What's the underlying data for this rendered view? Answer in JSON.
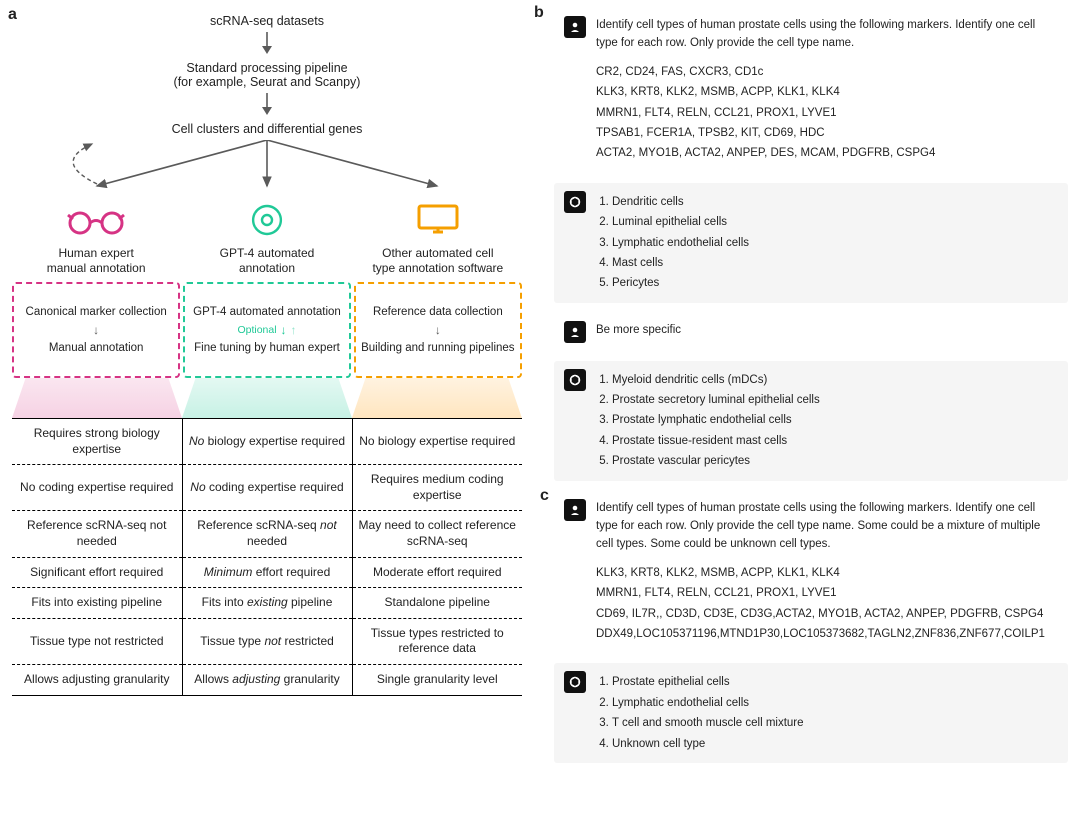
{
  "styling": {
    "colors": {
      "pink": "#d63384",
      "teal": "#20c997",
      "orange": "#f59f00",
      "arrow": "#5a5a5a",
      "text": "#222222",
      "chat_bg_bot": "#f5f5f5",
      "chat_bg_user": "#ffffff",
      "icon_bg": "#111111"
    },
    "fontsizes": {
      "label": 16,
      "body": 12,
      "chat": 11.5
    }
  },
  "a": {
    "flow": {
      "top": "scRNA-seq datasets",
      "mid": "Standard processing pipeline\n(for example, Seurat and Scanpy)",
      "bottom": "Cell clusters and differential genes"
    },
    "branches": [
      {
        "title": "Human expert\nmanual annotation",
        "color": "#d63384",
        "box": {
          "line1": "Canonical marker collection",
          "line2": "Manual annotation"
        }
      },
      {
        "title": "GPT-4 automated\nannotation",
        "color": "#20c997",
        "box": {
          "line1": "GPT-4 automated annotation",
          "optional": "Optional",
          "line2": "Fine tuning by human expert"
        }
      },
      {
        "title": "Other automated cell\ntype annotation software",
        "color": "#f59f00",
        "box": {
          "line1": "Reference data collection",
          "line2": "Building and running pipelines"
        }
      }
    ],
    "compare_rows": [
      [
        "Requires strong biology expertise",
        "<em>No</em> biology expertise required",
        "No biology expertise required"
      ],
      [
        "No coding expertise required",
        "<em>No</em> coding expertise required",
        "Requires medium coding expertise"
      ],
      [
        "Reference scRNA-seq not needed",
        "Reference scRNA-seq <em>not</em> needed",
        "May need to collect reference scRNA-seq"
      ],
      [
        "Significant effort required",
        "<em>Minimum</em> effort required",
        "Moderate effort required"
      ],
      [
        "Fits into existing pipeline",
        "Fits into <em>existing</em> pipeline",
        "Standalone pipeline"
      ],
      [
        "Tissue type not restricted",
        "Tissue type <em>not</em> restricted",
        "Tissue types restricted to reference data"
      ],
      [
        "Allows adjusting granularity",
        "Allows <em>adjusting</em> granularity",
        "Single granularity level"
      ]
    ]
  },
  "b": {
    "prompt1": "Identify cell types of human prostate cells using the following markers. Identify one cell type for each row. Only provide the cell type name.",
    "markers1": [
      "CR2, CD24, FAS, CXCR3, CD1c",
      "KLK3, KRT8, KLK2, MSMB, ACPP, KLK1, KLK4",
      "MMRN1, FLT4, RELN, CCL21, PROX1, LYVE1",
      "TPSAB1, FCER1A, TPSB2, KIT, CD69, HDC",
      "ACTA2, MYO1B, ACTA2, ANPEP, DES, MCAM, PDGFRB, CSPG4"
    ],
    "answer1": [
      "Dendritic cells",
      "Luminal epithelial cells",
      "Lymphatic endothelial cells",
      "Mast cells",
      "Pericytes"
    ],
    "prompt2": "Be more specific",
    "answer2": [
      "Myeloid dendritic cells (mDCs)",
      "Prostate secretory luminal epithelial cells",
      "Prostate lymphatic endothelial cells",
      "Prostate tissue-resident mast cells",
      "Prostate vascular pericytes"
    ]
  },
  "c": {
    "prompt": "Identify cell types of human prostate cells using the following markers. Identify one cell type for each row. Only provide the cell type name. Some could be a mixture of multiple cell types. Some could be unknown cell types.",
    "markers": [
      "KLK3, KRT8, KLK2, MSMB, ACPP, KLK1, KLK4",
      "MMRN1, FLT4, RELN, CCL21, PROX1, LYVE1",
      "CD69, IL7R,, CD3D, CD3E, CD3G,ACTA2, MYO1B, ACTA2, ANPEP, PDGFRB, CSPG4",
      "DDX49,LOC105371196,MTND1P30,LOC105373682,TAGLN2,ZNF836,ZNF677,COILP1"
    ],
    "answer": [
      "Prostate epithelial cells",
      "Lymphatic endothelial cells",
      "T cell and smooth muscle cell mixture",
      "Unknown cell type"
    ]
  },
  "labels": {
    "a": "a",
    "b": "b",
    "c": "c"
  }
}
